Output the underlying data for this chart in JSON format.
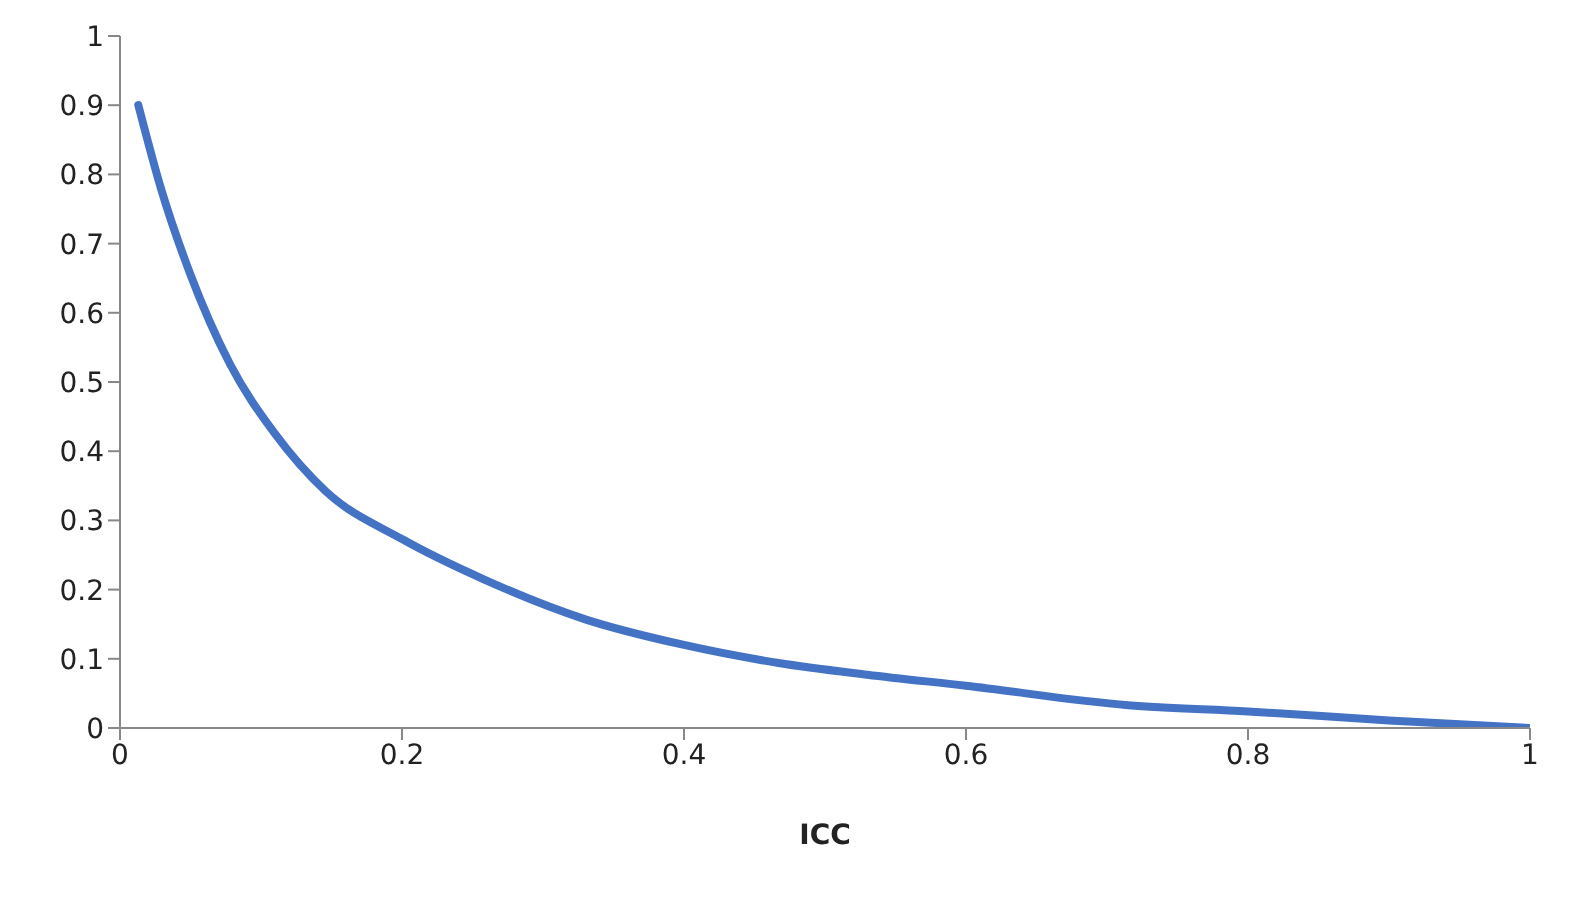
{
  "chart_data": {
    "type": "line",
    "xlabel": "ICC",
    "x": [
      0.013,
      0.029,
      0.05,
      0.078,
      0.11,
      0.146,
      0.2,
      0.26,
      0.33,
      0.4,
      0.467,
      0.53,
      0.6,
      0.715,
      0.8,
      0.9,
      1.0
    ],
    "series": [
      {
        "color": "#4472c4",
        "values": [
          0.9,
          0.78,
          0.655,
          0.526,
          0.425,
          0.342,
          0.273,
          0.213,
          0.157,
          0.12,
          0.094,
          0.077,
          0.061,
          0.033,
          0.024,
          0.011,
          0
        ]
      }
    ],
    "xlim": [
      0,
      1
    ],
    "xticks": [
      0,
      0.2,
      0.4,
      0.6,
      0.8,
      1
    ],
    "ylim": [
      0,
      1
    ],
    "yticks": [
      0,
      0.1,
      0.2,
      0.3,
      0.4,
      0.5,
      0.6,
      0.7,
      0.8,
      0.9,
      1
    ],
    "grid": false,
    "marker": "none",
    "line_style": "solid"
  }
}
